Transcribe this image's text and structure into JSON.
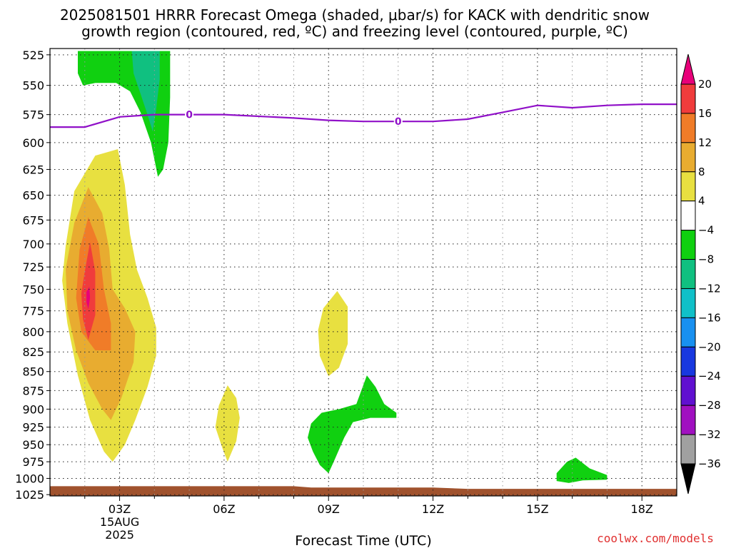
{
  "chart_data": {
    "type": "heatmap",
    "title_line1": "2025081501 HRRR Forecast Omega (shaded, μbar/s) for KACK with dendritic snow",
    "title_line2": "growth region (contoured, red, ºC) and freezing level (contoured, purple, ºC)",
    "xlabel": "Forecast Time (UTC)",
    "ylabel": "",
    "credit": "coolwx.com/models",
    "x_range_hours": [
      1,
      19
    ],
    "y_range_hpa": [
      520,
      1027
    ],
    "y_log": true,
    "grid": true,
    "y_ticks": [
      525,
      550,
      575,
      600,
      625,
      650,
      675,
      700,
      725,
      750,
      775,
      800,
      825,
      850,
      875,
      900,
      925,
      950,
      975,
      1000,
      1025
    ],
    "x_ticks": [
      {
        "hour": 3,
        "label": "03Z",
        "sub1": "15AUG",
        "sub2": "2025"
      },
      {
        "hour": 6,
        "label": "06Z"
      },
      {
        "hour": 9,
        "label": "09Z"
      },
      {
        "hour": 12,
        "label": "12Z"
      },
      {
        "hour": 15,
        "label": "15Z"
      },
      {
        "hour": 18,
        "label": "18Z"
      }
    ],
    "colorbar": {
      "labels": [
        "20",
        "16",
        "12",
        "8",
        "4",
        "−4",
        "−8",
        "−12",
        "−16",
        "−20",
        "−24",
        "−28",
        "−32",
        "−36"
      ],
      "bins": [
        {
          "color": "#e8007a"
        },
        {
          "color": "#f03c3c"
        },
        {
          "color": "#f07c28"
        },
        {
          "color": "#e8ac30"
        },
        {
          "color": "#e8e040"
        },
        {
          "color": "#ffffff"
        },
        {
          "color": "#10d010"
        },
        {
          "color": "#10c080"
        },
        {
          "color": "#10c0c8"
        },
        {
          "color": "#1890f0"
        },
        {
          "color": "#1838e0"
        },
        {
          "color": "#6010d0"
        },
        {
          "color": "#a010c0"
        },
        {
          "color": "#a0a0a0"
        },
        {
          "color": "#000000"
        }
      ]
    },
    "freezing_level": {
      "color": "#9010c8",
      "label": "0",
      "label_points": [
        [
          5.0,
          575
        ],
        [
          11.0,
          581
        ]
      ],
      "points": [
        [
          1.0,
          586
        ],
        [
          2.0,
          586
        ],
        [
          3.0,
          577
        ],
        [
          4.0,
          575
        ],
        [
          6.0,
          575
        ],
        [
          8.0,
          578
        ],
        [
          9.0,
          580
        ],
        [
          10.0,
          581
        ],
        [
          11.0,
          581
        ],
        [
          12.0,
          581
        ],
        [
          13.0,
          579
        ],
        [
          14.0,
          573
        ],
        [
          15.0,
          567
        ],
        [
          16.0,
          569
        ],
        [
          17.0,
          567
        ],
        [
          18.0,
          566
        ],
        [
          19.0,
          566
        ]
      ]
    },
    "ground": {
      "color": "#a0522d",
      "top_points": [
        [
          1.0,
          1012
        ],
        [
          8.0,
          1012
        ],
        [
          8.5,
          1014
        ],
        [
          12.0,
          1014
        ],
        [
          13.0,
          1016
        ],
        [
          19.0,
          1016
        ]
      ]
    },
    "omega_regions": [
      {
        "value": 6,
        "color": "#e8e040",
        "points": [
          [
            1.45,
            702
          ],
          [
            1.7,
            646
          ],
          [
            2.3,
            612
          ],
          [
            2.95,
            606
          ],
          [
            3.15,
            640
          ],
          [
            3.3,
            690
          ],
          [
            3.5,
            728
          ],
          [
            3.8,
            760
          ],
          [
            4.05,
            795
          ],
          [
            4.05,
            830
          ],
          [
            3.8,
            870
          ],
          [
            3.45,
            915
          ],
          [
            3.15,
            950
          ],
          [
            2.8,
            975
          ],
          [
            2.55,
            960
          ],
          [
            2.15,
            915
          ],
          [
            1.8,
            855
          ],
          [
            1.5,
            790
          ],
          [
            1.35,
            740
          ]
        ]
      },
      {
        "value": 10,
        "color": "#e8ac30",
        "points": [
          [
            1.45,
            727
          ],
          [
            1.7,
            678
          ],
          [
            2.1,
            642
          ],
          [
            2.5,
            668
          ],
          [
            2.7,
            705
          ],
          [
            2.8,
            750
          ],
          [
            3.15,
            772
          ],
          [
            3.45,
            800
          ],
          [
            3.4,
            838
          ],
          [
            3.05,
            885
          ],
          [
            2.75,
            915
          ],
          [
            2.5,
            900
          ],
          [
            2.1,
            865
          ],
          [
            1.75,
            823
          ],
          [
            1.5,
            775
          ]
        ]
      },
      {
        "value": 14,
        "color": "#f07c28",
        "points": [
          [
            1.85,
            706
          ],
          [
            2.1,
            672
          ],
          [
            2.4,
            700
          ],
          [
            2.55,
            750
          ],
          [
            2.75,
            790
          ],
          [
            2.75,
            823
          ],
          [
            2.3,
            823
          ],
          [
            1.9,
            800
          ],
          [
            1.75,
            760
          ]
        ]
      },
      {
        "value": 18,
        "color": "#f03c3c",
        "points": [
          [
            2.0,
            730
          ],
          [
            2.15,
            698
          ],
          [
            2.3,
            730
          ],
          [
            2.3,
            780
          ],
          [
            2.1,
            810
          ],
          [
            1.95,
            785
          ],
          [
            1.9,
            755
          ]
        ]
      },
      {
        "value": 22,
        "color": "#e8007a",
        "points": [
          [
            2.05,
            753
          ],
          [
            2.13,
            747
          ],
          [
            2.15,
            760
          ],
          [
            2.1,
            773
          ],
          [
            2.05,
            765
          ]
        ]
      },
      {
        "value": -6,
        "color": "#10d010",
        "points": [
          [
            1.8,
            522
          ],
          [
            4.45,
            522
          ],
          [
            4.45,
            560
          ],
          [
            4.4,
            600
          ],
          [
            4.25,
            625
          ],
          [
            4.1,
            632
          ],
          [
            3.9,
            600
          ],
          [
            3.6,
            573
          ],
          [
            3.3,
            555
          ],
          [
            2.9,
            548
          ],
          [
            2.3,
            548
          ],
          [
            1.95,
            550
          ],
          [
            1.8,
            540
          ]
        ]
      },
      {
        "value": -10,
        "color": "#10c080",
        "points": [
          [
            3.35,
            522
          ],
          [
            4.15,
            522
          ],
          [
            4.15,
            545
          ],
          [
            4.05,
            570
          ],
          [
            3.95,
            590
          ],
          [
            3.8,
            575
          ],
          [
            3.6,
            557
          ],
          [
            3.4,
            540
          ]
        ]
      },
      {
        "value": 6,
        "color": "#e8e040",
        "points": [
          [
            9.25,
            752
          ],
          [
            9.55,
            770
          ],
          [
            9.55,
            815
          ],
          [
            9.3,
            845
          ],
          [
            9.0,
            856
          ],
          [
            8.75,
            830
          ],
          [
            8.7,
            798
          ],
          [
            8.85,
            772
          ]
        ]
      },
      {
        "value": 6,
        "color": "#e8e040",
        "points": [
          [
            6.1,
            868
          ],
          [
            6.35,
            885
          ],
          [
            6.45,
            912
          ],
          [
            6.35,
            945
          ],
          [
            6.1,
            975
          ],
          [
            5.95,
            955
          ],
          [
            5.75,
            925
          ],
          [
            5.85,
            895
          ]
        ]
      },
      {
        "value": -6,
        "color": "#10d010",
        "points": [
          [
            10.1,
            855
          ],
          [
            10.35,
            870
          ],
          [
            10.6,
            893
          ],
          [
            10.95,
            905
          ],
          [
            10.95,
            912
          ],
          [
            10.2,
            912
          ],
          [
            9.7,
            918
          ],
          [
            9.45,
            940
          ],
          [
            9.15,
            975
          ],
          [
            9.0,
            992
          ],
          [
            8.75,
            980
          ],
          [
            8.55,
            960
          ],
          [
            8.4,
            940
          ],
          [
            8.5,
            920
          ],
          [
            8.8,
            905
          ],
          [
            9.3,
            900
          ],
          [
            9.8,
            893
          ]
        ]
      },
      {
        "value": -6,
        "color": "#10d010",
        "points": [
          [
            15.55,
            992
          ],
          [
            15.85,
            975
          ],
          [
            16.1,
            969
          ],
          [
            16.5,
            985
          ],
          [
            17.0,
            995
          ],
          [
            17.0,
            1002
          ],
          [
            16.3,
            1003
          ],
          [
            15.9,
            1007
          ],
          [
            15.55,
            1004
          ]
        ]
      }
    ]
  }
}
